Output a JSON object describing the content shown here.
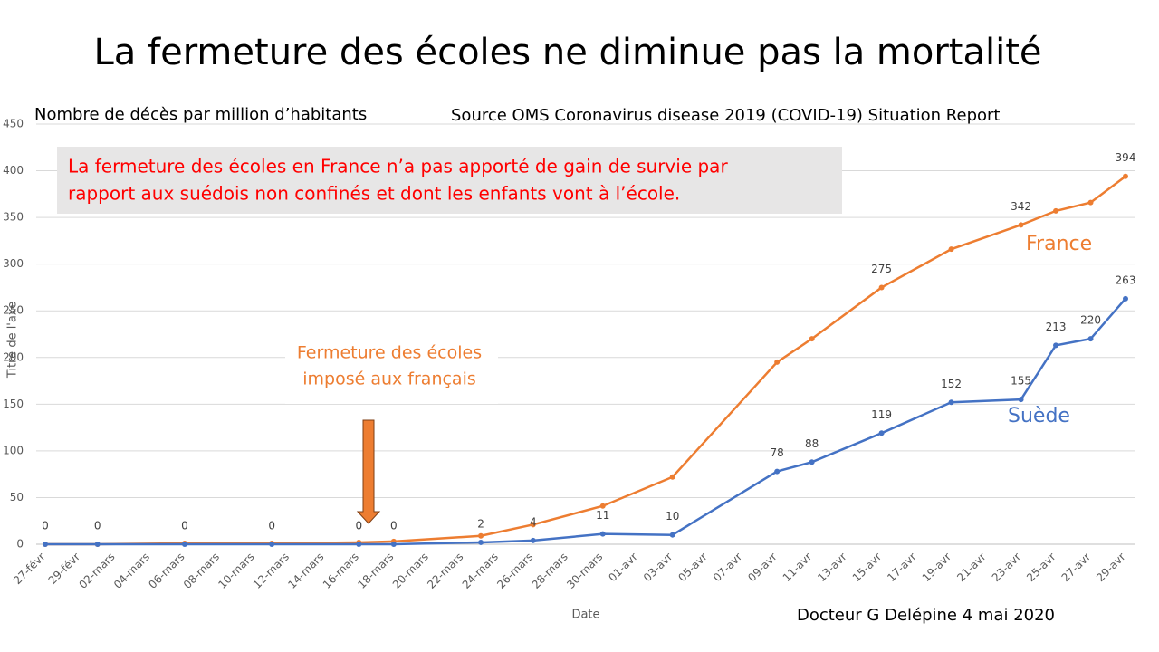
{
  "chart_data": {
    "type": "line",
    "title": "La fermeture des écoles ne diminue pas la mortalité",
    "subtitle": "Nombre de décès par million d’habitants",
    "source": "Source OMS Coronavirus disease 2019 (COVID-19) Situation Report",
    "annotation": [
      "La fermeture des écoles en France  n’a pas apporté de gain de survie par",
      "rapport aux suédois non confinés et dont les enfants vont à l’école."
    ],
    "note": [
      "Fermeture des écoles",
      "imposé aux français"
    ],
    "author": "Docteur G Delépine 4 mai 2020",
    "x_label": "Date",
    "y_label": "Titre de l'axe",
    "xlim": [
      "27-févr",
      "29-avr"
    ],
    "xticks": [
      "27-févr",
      "29-févr",
      "02-mars",
      "04-mars",
      "06-mars",
      "08-mars",
      "10-mars",
      "12-mars",
      "14-mars",
      "16-mars",
      "18-mars",
      "20-mars",
      "22-mars",
      "24-mars",
      "26-mars",
      "28-mars",
      "30-mars",
      "01-avr",
      "03-avr",
      "05-avr",
      "07-avr",
      "09-avr",
      "11-avr",
      "13-avr",
      "15-avr",
      "17-avr",
      "19-avr",
      "21-avr",
      "23-avr",
      "25-avr",
      "27-avr",
      "29-avr"
    ],
    "x": [
      "27-févr",
      "01-mars",
      "06-mars",
      "11-mars",
      "16-mars",
      "18-mars",
      "23-mars",
      "26-mars",
      "30-mars",
      "03-avr",
      "09-avr",
      "11-avr",
      "15-avr",
      "19-avr",
      "23-avr",
      "25-avr",
      "27-avr",
      "29-avr"
    ],
    "ylim": [
      0,
      450
    ],
    "yticks": [
      0,
      50,
      100,
      150,
      200,
      250,
      300,
      350,
      400,
      450
    ],
    "grid": true,
    "series": [
      {
        "name": "France",
        "color": "#ed7d31",
        "values": [
          0,
          0,
          1,
          1,
          2,
          3,
          9,
          21,
          41,
          72,
          195,
          220,
          275,
          316,
          342,
          357,
          366,
          394
        ],
        "value_labels": [
          null,
          null,
          null,
          null,
          null,
          null,
          null,
          null,
          null,
          null,
          null,
          null,
          "275",
          null,
          "342",
          null,
          null,
          "394"
        ]
      },
      {
        "name": "Suède",
        "color": "#4472c4",
        "values": [
          0,
          0,
          0,
          0,
          0,
          0,
          2,
          4,
          11,
          10,
          78,
          88,
          119,
          152,
          155,
          213,
          220,
          263
        ],
        "value_labels": [
          "0",
          "0",
          "0",
          "0",
          "0",
          "0",
          "2",
          "4",
          "11",
          "10",
          "78",
          "88",
          "119",
          "152",
          "155",
          "213",
          "220",
          "263"
        ]
      }
    ]
  }
}
